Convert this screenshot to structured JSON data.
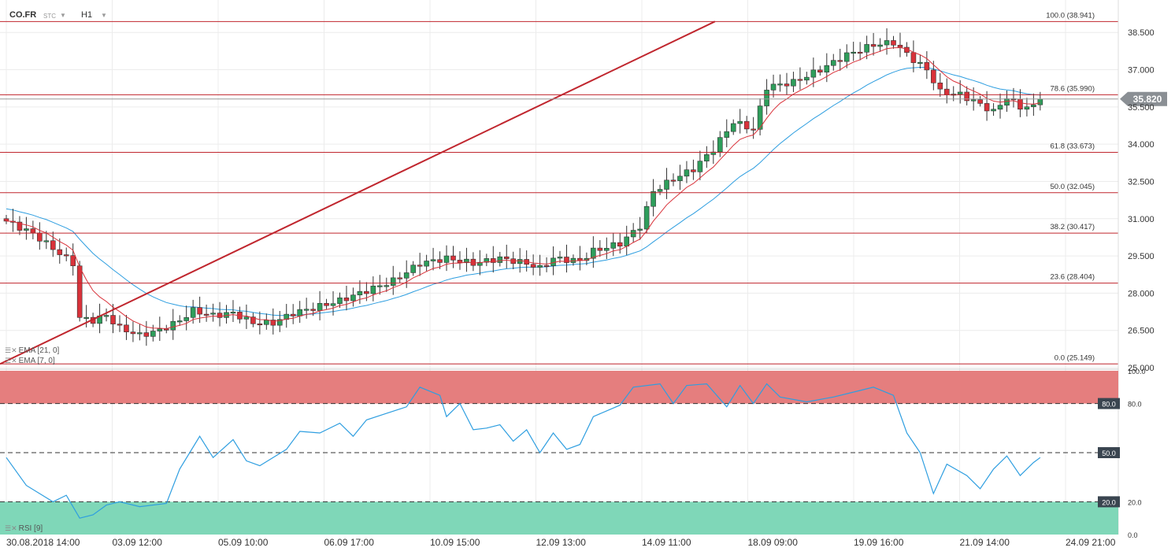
{
  "toolbar": {
    "symbol": "CO.FR",
    "type": "STC",
    "timeframe": "H1"
  },
  "legend": {
    "ema21": "EMA [21, 0]",
    "ema7": "EMA [7, 0]",
    "rsi": "RSI [9]"
  },
  "colors": {
    "bull": "#2e9e5b",
    "bear": "#d9323a",
    "ema7": "#d9323a",
    "ema21": "#2e9ee0",
    "fib": "#c0262e",
    "rsi": "#2e9ee0",
    "overbought_zone": "#e57e7e",
    "oversold_zone": "#7fd7b8"
  },
  "chart_data": {
    "type": "candlestick",
    "symbol": "CO.FR",
    "timeframe": "H1",
    "price_axis": {
      "ticks": [
        25.0,
        26.5,
        28.0,
        29.5,
        31.0,
        32.5,
        34.0,
        35.5,
        37.0,
        38.5
      ],
      "tick_labels": [
        "25.000",
        "26.500",
        "28.000",
        "29.500",
        "31.000",
        "32.500",
        "34.000",
        "35.500",
        "37.000",
        "38.500"
      ],
      "range": [
        25.0,
        39.3
      ]
    },
    "time_axis_labels": [
      "30.08.2018 14:00",
      "03.09 12:00",
      "05.09 10:00",
      "06.09 17:00",
      "10.09 15:00",
      "12.09 13:00",
      "14.09 11:00",
      "18.09 09:00",
      "19.09 16:00",
      "21.09 14:00",
      "24.09 21:00"
    ],
    "current_price": "35.820",
    "fibonacci": [
      {
        "label": "100.0 (38.941)",
        "value": 38.941
      },
      {
        "label": "78.6 (35.990)",
        "value": 35.99
      },
      {
        "label": "61.8 (33.673)",
        "value": 33.673
      },
      {
        "label": "50.0 (32.045)",
        "value": 32.045
      },
      {
        "label": "38.2 (30.417)",
        "value": 30.417
      },
      {
        "label": "23.6 (28.404)",
        "value": 28.404
      },
      {
        "label": "0.0 (25.149)",
        "value": 25.149
      }
    ],
    "trendline": {
      "from": {
        "index": 0,
        "value": 25.149
      },
      "to": {
        "index": 106,
        "value": 38.941
      }
    },
    "anchors": [
      [
        0,
        30.9
      ],
      [
        4,
        30.4
      ],
      [
        7,
        29.8
      ],
      [
        10,
        29.2
      ],
      [
        11,
        27.0
      ],
      [
        13,
        26.9
      ],
      [
        15,
        27.1
      ],
      [
        17,
        26.6
      ],
      [
        20,
        26.3
      ],
      [
        23,
        26.5
      ],
      [
        26,
        26.9
      ],
      [
        28,
        27.3
      ],
      [
        31,
        27.1
      ],
      [
        34,
        27.2
      ],
      [
        37,
        26.8
      ],
      [
        40,
        26.8
      ],
      [
        43,
        27.2
      ],
      [
        46,
        27.4
      ],
      [
        50,
        27.7
      ],
      [
        54,
        28.1
      ],
      [
        58,
        28.5
      ],
      [
        62,
        29.2
      ],
      [
        66,
        29.4
      ],
      [
        70,
        29.2
      ],
      [
        74,
        29.4
      ],
      [
        78,
        29.2
      ],
      [
        80,
        29.0
      ],
      [
        82,
        29.4
      ],
      [
        86,
        29.3
      ],
      [
        88,
        29.7
      ],
      [
        92,
        30.0
      ],
      [
        95,
        30.7
      ],
      [
        97,
        32.1
      ],
      [
        100,
        32.6
      ],
      [
        103,
        33.0
      ],
      [
        106,
        33.8
      ],
      [
        109,
        34.9
      ],
      [
        112,
        34.6
      ],
      [
        114,
        36.3
      ],
      [
        118,
        36.5
      ],
      [
        122,
        37.0
      ],
      [
        126,
        37.6
      ],
      [
        130,
        38.0
      ],
      [
        133,
        38.1
      ],
      [
        136,
        37.4
      ],
      [
        138,
        37.0
      ],
      [
        140,
        36.1
      ],
      [
        143,
        36.0
      ],
      [
        146,
        35.6
      ],
      [
        148,
        35.3
      ],
      [
        150,
        35.9
      ],
      [
        152,
        35.5
      ],
      [
        154,
        35.5
      ],
      [
        155,
        35.82
      ]
    ],
    "rsi": {
      "label": "RSI [9]",
      "levels": [
        80,
        50,
        20
      ],
      "level_labels": [
        "80.0",
        "50.0",
        "20.0"
      ],
      "axis_labels": [
        "100.0",
        "80.0",
        "20.0",
        "0.0"
      ],
      "points": [
        [
          0,
          47
        ],
        [
          3,
          30
        ],
        [
          7,
          20
        ],
        [
          9,
          24
        ],
        [
          11,
          10
        ],
        [
          13,
          12
        ],
        [
          15,
          18
        ],
        [
          17,
          20
        ],
        [
          20,
          17
        ],
        [
          24,
          19
        ],
        [
          26,
          40
        ],
        [
          29,
          60
        ],
        [
          31,
          47
        ],
        [
          34,
          58
        ],
        [
          36,
          45
        ],
        [
          38,
          42
        ],
        [
          42,
          52
        ],
        [
          44,
          63
        ],
        [
          47,
          62
        ],
        [
          50,
          68
        ],
        [
          52,
          60
        ],
        [
          54,
          70
        ],
        [
          57,
          74
        ],
        [
          60,
          78
        ],
        [
          62,
          90
        ],
        [
          65,
          85
        ],
        [
          66,
          72
        ],
        [
          68,
          80
        ],
        [
          70,
          64
        ],
        [
          72,
          65
        ],
        [
          74,
          67
        ],
        [
          76,
          57
        ],
        [
          78,
          64
        ],
        [
          80,
          50
        ],
        [
          82,
          62
        ],
        [
          84,
          52
        ],
        [
          86,
          55
        ],
        [
          88,
          72
        ],
        [
          92,
          79
        ],
        [
          94,
          90
        ],
        [
          98,
          92
        ],
        [
          100,
          80
        ],
        [
          102,
          91
        ],
        [
          105,
          92
        ],
        [
          108,
          78
        ],
        [
          110,
          91
        ],
        [
          112,
          80
        ],
        [
          114,
          92
        ],
        [
          116,
          84
        ],
        [
          120,
          81
        ],
        [
          124,
          84
        ],
        [
          128,
          88
        ],
        [
          130,
          90
        ],
        [
          133,
          85
        ],
        [
          135,
          62
        ],
        [
          137,
          50
        ],
        [
          139,
          25
        ],
        [
          141,
          43
        ],
        [
          144,
          36
        ],
        [
          146,
          28
        ],
        [
          148,
          40
        ],
        [
          150,
          48
        ],
        [
          152,
          36
        ],
        [
          154,
          44
        ],
        [
          155,
          47
        ]
      ]
    }
  }
}
